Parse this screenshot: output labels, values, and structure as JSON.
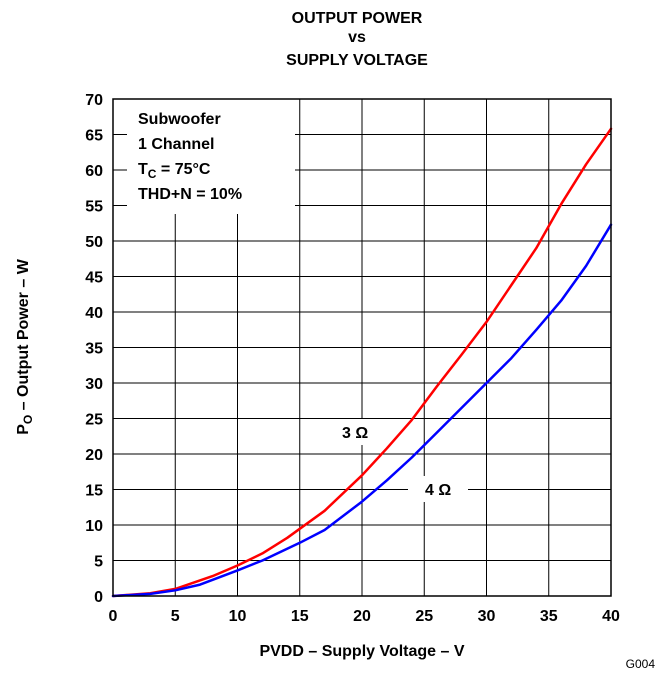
{
  "chart_data": {
    "type": "line",
    "title": [
      "OUTPUT POWER",
      "vs",
      "SUPPLY VOLTAGE"
    ],
    "xlabel": "PVDD – Supply Voltage – V",
    "ylabel": {
      "prefix": "P",
      "sub": "O",
      "rest": " – Output Power – W"
    },
    "xlim": [
      0,
      40
    ],
    "ylim": [
      0,
      70
    ],
    "xticks": [
      0,
      5,
      10,
      15,
      20,
      25,
      30,
      35,
      40
    ],
    "yticks": [
      0,
      5,
      10,
      15,
      20,
      25,
      30,
      35,
      40,
      45,
      50,
      55,
      60,
      65,
      70
    ],
    "grid": true,
    "annotation_box": {
      "lines": [
        "Subwoofer",
        "1 Channel"
      ],
      "tc": {
        "prefix": "T",
        "sub": "C",
        "rest": " = 75°C"
      },
      "thd": "THD+N = 10%"
    },
    "figure_id": "G004",
    "series": [
      {
        "name": "3 Ω",
        "color": "#ff0000",
        "x": [
          0,
          3,
          5,
          8,
          10,
          12,
          14,
          17,
          20,
          22,
          24,
          26,
          28,
          30,
          32,
          34,
          36,
          38,
          40
        ],
        "y": [
          0,
          0.4,
          1.0,
          2.8,
          4.3,
          6.0,
          8.2,
          12.0,
          17.0,
          20.8,
          24.8,
          29.5,
          34.0,
          38.6,
          43.8,
          49.0,
          55.2,
          60.8,
          65.8
        ]
      },
      {
        "name": "4 Ω",
        "color": "#0000ff",
        "x": [
          0,
          3,
          5,
          7,
          10,
          12,
          15,
          17,
          20,
          22,
          24,
          26,
          28,
          30,
          32,
          34,
          36,
          38,
          40
        ],
        "y": [
          0,
          0.3,
          0.8,
          1.6,
          3.6,
          5.0,
          7.5,
          9.3,
          13.3,
          16.3,
          19.5,
          23.0,
          26.5,
          30.0,
          33.5,
          37.5,
          41.6,
          46.5,
          52.3
        ]
      }
    ]
  }
}
